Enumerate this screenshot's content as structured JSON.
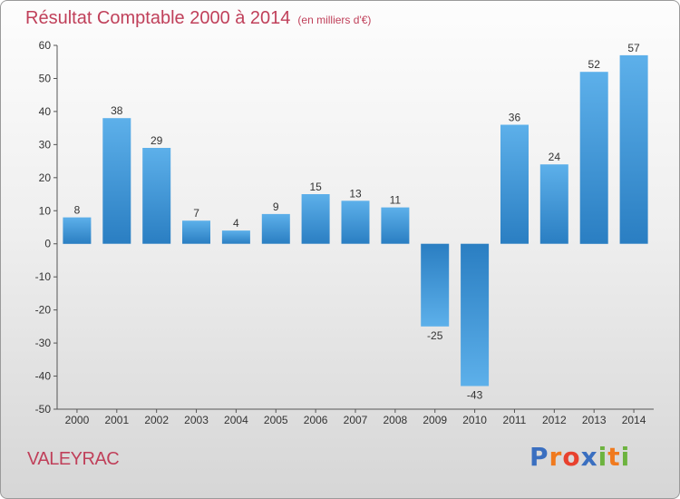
{
  "chart_data": {
    "type": "bar",
    "title": "Résultat Comptable 2000 à 2014",
    "subtitle": "(en milliers d'€)",
    "categories": [
      "2000",
      "2001",
      "2002",
      "2003",
      "2004",
      "2005",
      "2006",
      "2007",
      "2008",
      "2009",
      "2010",
      "2011",
      "2012",
      "2013",
      "2014"
    ],
    "values": [
      8,
      38,
      29,
      7,
      4,
      9,
      15,
      13,
      11,
      -25,
      -43,
      36,
      24,
      52,
      57
    ],
    "ylim": [
      -50,
      60
    ],
    "yticks": [
      60,
      50,
      40,
      30,
      20,
      10,
      0,
      -10,
      -20,
      -30,
      -40,
      -50
    ],
    "xlabel": "",
    "ylabel": "",
    "bar_color_light": "#5db0ea",
    "bar_color_dark": "#2a7ec2"
  },
  "commune": "VALEYRAC",
  "brand": {
    "text": "Proxiti",
    "letters": [
      "P",
      "r",
      "o",
      "x",
      "i",
      "t",
      "i"
    ],
    "colors": [
      "#3a6fc0",
      "#f07a1e",
      "#e8412e",
      "#3a6fc0",
      "#6db33f",
      "#f07a1e",
      "#6db33f"
    ]
  },
  "colors": {
    "title": "#c0405a",
    "axis": "#333333"
  }
}
